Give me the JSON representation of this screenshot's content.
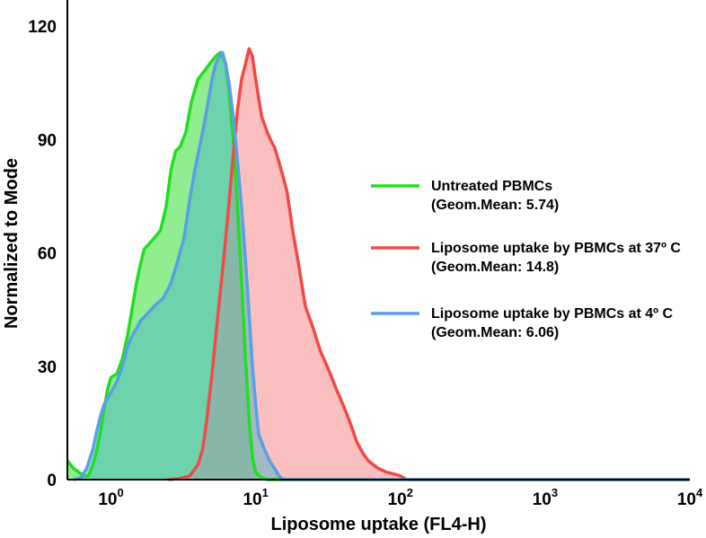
{
  "chart_data": {
    "type": "area",
    "xlabel": "Liposome uptake (FL4-H)",
    "ylabel": "Normalized to Mode",
    "xscale": "log",
    "xlim": [
      0.5,
      10000
    ],
    "ylim": [
      0,
      125
    ],
    "yticks": [
      {
        "value": 0,
        "label": "0"
      },
      {
        "value": 30,
        "label": "30"
      },
      {
        "value": 60,
        "label": "60"
      },
      {
        "value": 90,
        "label": "90"
      },
      {
        "value": 120,
        "label": "120"
      }
    ],
    "xticks": [
      {
        "value": 1,
        "base": "10",
        "exp": "0"
      },
      {
        "value": 10,
        "base": "10",
        "exp": "1"
      },
      {
        "value": 100,
        "base": "10",
        "exp": "2"
      },
      {
        "value": 1000,
        "base": "10",
        "exp": "3"
      },
      {
        "value": 10000,
        "base": "10",
        "exp": "4"
      }
    ],
    "legend_position": "right",
    "series": [
      {
        "name": "Untreated PBMCs",
        "note": "(Geom.Mean: 5.74)",
        "color": "#22dd22",
        "fill": "#22dd22",
        "points": [
          [
            0.5,
            5
          ],
          [
            0.55,
            3
          ],
          [
            0.65,
            1
          ],
          [
            0.7,
            1
          ],
          [
            0.75,
            4
          ],
          [
            0.8,
            8
          ],
          [
            0.85,
            13
          ],
          [
            0.9,
            19
          ],
          [
            0.95,
            24
          ],
          [
            1.0,
            27
          ],
          [
            1.1,
            28
          ],
          [
            1.2,
            32
          ],
          [
            1.3,
            38
          ],
          [
            1.4,
            45
          ],
          [
            1.5,
            52
          ],
          [
            1.6,
            57
          ],
          [
            1.7,
            61
          ],
          [
            1.8,
            62
          ],
          [
            2.0,
            64
          ],
          [
            2.2,
            66
          ],
          [
            2.4,
            72
          ],
          [
            2.6,
            82
          ],
          [
            2.8,
            87
          ],
          [
            3.0,
            88
          ],
          [
            3.3,
            92
          ],
          [
            3.6,
            100
          ],
          [
            4.0,
            106
          ],
          [
            4.4,
            108
          ],
          [
            4.8,
            110
          ],
          [
            5.3,
            112
          ],
          [
            5.7,
            113
          ],
          [
            6.2,
            110
          ],
          [
            6.5,
            104
          ],
          [
            7.0,
            90
          ],
          [
            7.5,
            72
          ],
          [
            8.0,
            52
          ],
          [
            8.5,
            32
          ],
          [
            9.0,
            16
          ],
          [
            9.5,
            6
          ],
          [
            10,
            2
          ],
          [
            11,
            0.5
          ],
          [
            12,
            0
          ],
          [
            10000,
            0
          ]
        ]
      },
      {
        "name": "Liposome uptake by PBMCs at 37º C",
        "note": "(Geom.Mean: 14.8)",
        "color": "#f24848",
        "fill": "#f77f7f",
        "points": [
          [
            2.5,
            0
          ],
          [
            3,
            0.3
          ],
          [
            3.5,
            1
          ],
          [
            4,
            4
          ],
          [
            4.3,
            8
          ],
          [
            4.6,
            16
          ],
          [
            5,
            28
          ],
          [
            5.5,
            44
          ],
          [
            6,
            58
          ],
          [
            6.5,
            72
          ],
          [
            7,
            86
          ],
          [
            7.5,
            98
          ],
          [
            8,
            106
          ],
          [
            8.5,
            110
          ],
          [
            9,
            114
          ],
          [
            9.5,
            112
          ],
          [
            10,
            106
          ],
          [
            11,
            96
          ],
          [
            12,
            92
          ],
          [
            13,
            89
          ],
          [
            13.5,
            88
          ],
          [
            14.5,
            84
          ],
          [
            15.5,
            80
          ],
          [
            16.5,
            76
          ],
          [
            18,
            66
          ],
          [
            20,
            56
          ],
          [
            22,
            46
          ],
          [
            25,
            40
          ],
          [
            28,
            34
          ],
          [
            32,
            29
          ],
          [
            36,
            24
          ],
          [
            40,
            20
          ],
          [
            45,
            15
          ],
          [
            50,
            10
          ],
          [
            55,
            7
          ],
          [
            60,
            5
          ],
          [
            70,
            3
          ],
          [
            80,
            2
          ],
          [
            90,
            1.5
          ],
          [
            100,
            1
          ],
          [
            110,
            0
          ],
          [
            10000,
            0
          ]
        ]
      },
      {
        "name": "Liposome uptake by PBMCs at 4º C",
        "note": "(Geom.Mean: 6.06)",
        "color": "#5a9ee6",
        "fill": "#48b8c8",
        "points": [
          [
            0.55,
            0
          ],
          [
            0.62,
            0.5
          ],
          [
            0.68,
            3
          ],
          [
            0.75,
            8
          ],
          [
            0.8,
            13
          ],
          [
            0.85,
            17
          ],
          [
            0.9,
            20
          ],
          [
            1.0,
            23
          ],
          [
            1.1,
            26
          ],
          [
            1.2,
            30
          ],
          [
            1.3,
            35
          ],
          [
            1.4,
            38
          ],
          [
            1.5,
            40
          ],
          [
            1.6,
            42
          ],
          [
            1.8,
            44
          ],
          [
            2.0,
            46
          ],
          [
            2.3,
            48
          ],
          [
            2.6,
            52
          ],
          [
            2.9,
            58
          ],
          [
            3.2,
            64
          ],
          [
            3.5,
            74
          ],
          [
            3.8,
            82
          ],
          [
            4.1,
            88
          ],
          [
            4.4,
            94
          ],
          [
            4.7,
            100
          ],
          [
            5.0,
            106
          ],
          [
            5.3,
            110
          ],
          [
            5.6,
            112
          ],
          [
            5.9,
            113
          ],
          [
            6.2,
            110
          ],
          [
            6.6,
            104
          ],
          [
            7.0,
            96
          ],
          [
            7.5,
            84
          ],
          [
            8.0,
            72
          ],
          [
            8.5,
            58
          ],
          [
            9.0,
            44
          ],
          [
            9.5,
            30
          ],
          [
            10.0,
            20
          ],
          [
            10.5,
            12
          ],
          [
            11.5,
            8
          ],
          [
            12.5,
            5
          ],
          [
            13.5,
            3
          ],
          [
            14.5,
            1
          ],
          [
            15.5,
            0
          ],
          [
            10000,
            0
          ]
        ]
      }
    ]
  }
}
